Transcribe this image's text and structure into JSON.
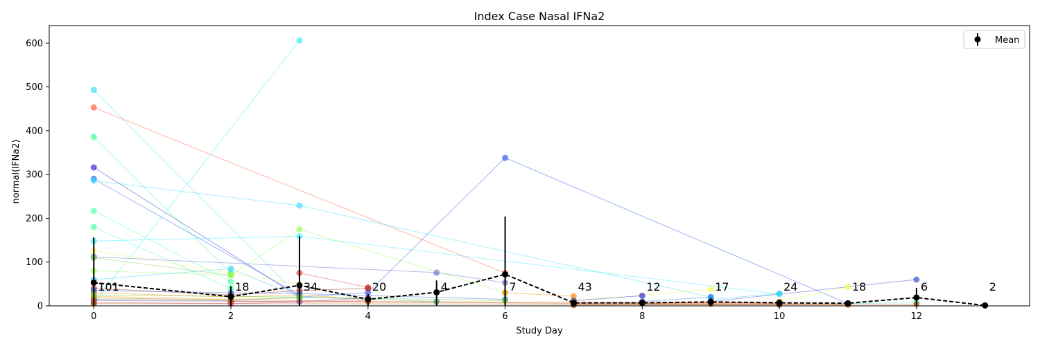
{
  "chart_data": {
    "type": "line",
    "title": "Index Case Nasal IFNa2",
    "xlabel": "Study Day",
    "ylabel": "normal(IFNa2)",
    "xlim": [
      -0.65,
      13.65
    ],
    "ylim": [
      0,
      640
    ],
    "xticks": [
      0,
      2,
      4,
      6,
      8,
      10,
      12
    ],
    "yticks": [
      0,
      100,
      200,
      300,
      400,
      500,
      600
    ],
    "grid": false,
    "legend": {
      "position": "top-right",
      "entries": [
        "Mean"
      ]
    },
    "mean_series": {
      "name": "Mean",
      "color": "#000000",
      "x": [
        0,
        2,
        3,
        4,
        5,
        6,
        7,
        8,
        9,
        10,
        11,
        12,
        13
      ],
      "y": [
        53,
        21,
        47,
        15,
        31,
        72,
        7,
        7,
        9,
        7,
        6,
        19,
        1
      ],
      "err_low": [
        53,
        21,
        47,
        15,
        31,
        72,
        7,
        7,
        9,
        7,
        6,
        19,
        1
      ],
      "err_high": [
        103,
        24,
        112,
        12,
        27,
        132,
        7,
        7,
        9,
        7,
        6,
        22,
        1
      ]
    },
    "counts": {
      "x": [
        0,
        2,
        3,
        4,
        5,
        6,
        7,
        8,
        9,
        10,
        11,
        12,
        13
      ],
      "labels": [
        "101",
        "18",
        "34",
        "20",
        "4",
        "7",
        "43",
        "12",
        "17",
        "24",
        "18",
        "6",
        "2"
      ]
    },
    "subject_series": [
      {
        "color": "#33ddff",
        "x": [
          0,
          3
        ],
        "y": [
          493,
          20
        ]
      },
      {
        "color": "#ff5533",
        "x": [
          0,
          6
        ],
        "y": [
          453,
          75
        ]
      },
      {
        "color": "#33ff99",
        "x": [
          0,
          2
        ],
        "y": [
          386,
          75
        ]
      },
      {
        "color": "#2222cc",
        "x": [
          0,
          3
        ],
        "y": [
          316,
          20
        ]
      },
      {
        "color": "#2255ee",
        "x": [
          0,
          3
        ],
        "y": [
          290,
          25
        ]
      },
      {
        "color": "#33ddff",
        "x": [
          0,
          3,
          9
        ],
        "y": [
          286,
          229,
          20
        ]
      },
      {
        "color": "#44ffaa",
        "x": [
          0,
          2
        ],
        "y": [
          217,
          55
        ]
      },
      {
        "color": "#44ffaa",
        "x": [
          0,
          2
        ],
        "y": [
          180,
          40
        ]
      },
      {
        "color": "#33eeff",
        "x": [
          0,
          3,
          10
        ],
        "y": [
          148,
          159,
          27
        ]
      },
      {
        "color": "#ffee66",
        "x": [
          0,
          3
        ],
        "y": [
          126,
          50
        ]
      },
      {
        "color": "#6666cc",
        "x": [
          0,
          5,
          6
        ],
        "y": [
          112,
          76,
          53
        ]
      },
      {
        "color": "#88cc55",
        "x": [
          0,
          2
        ],
        "y": [
          110,
          70
        ]
      },
      {
        "color": "#99ff55",
        "x": [
          0,
          2,
          3,
          6
        ],
        "y": [
          80,
          70,
          175,
          30
        ]
      },
      {
        "color": "#33eeff",
        "x": [
          0,
          3
        ],
        "y": [
          5,
          606
        ]
      },
      {
        "color": "#33ccee",
        "x": [
          0,
          2,
          3
        ],
        "y": [
          60,
          85,
          20
        ]
      },
      {
        "color": "#2255ee",
        "x": [
          3,
          4,
          6,
          11
        ],
        "y": [
          20,
          30,
          338,
          5
        ]
      },
      {
        "color": "#3344cc",
        "x": [
          9,
          12
        ],
        "y": [
          10,
          60
        ]
      },
      {
        "color": "#ee3333",
        "x": [
          3,
          4
        ],
        "y": [
          75,
          42
        ]
      },
      {
        "color": "#ff8800",
        "x": [
          6,
          7
        ],
        "y": [
          30,
          22
        ]
      },
      {
        "color": "#eeff44",
        "x": [
          7,
          9
        ],
        "y": [
          12,
          38
        ]
      },
      {
        "color": "#eeff44",
        "x": [
          10,
          11
        ],
        "y": [
          10,
          43
        ]
      },
      {
        "color": "#33ccee",
        "x": [
          9,
          10
        ],
        "y": [
          15,
          28
        ]
      },
      {
        "color": "#2222cc",
        "x": [
          7,
          8
        ],
        "y": [
          12,
          23
        ]
      },
      {
        "color": "#2277ee",
        "x": [
          8,
          9
        ],
        "y": [
          10,
          20
        ]
      },
      {
        "color": "#33ffcc",
        "x": [
          11,
          12
        ],
        "y": [
          5,
          8
        ]
      },
      {
        "color": "#ff8800",
        "x": [
          0,
          2,
          3,
          4
        ],
        "y": [
          30,
          20,
          25,
          15
        ]
      },
      {
        "color": "#aa2222",
        "x": [
          0,
          2,
          3,
          4
        ],
        "y": [
          40,
          25,
          35,
          40
        ]
      },
      {
        "color": "#ffaa00",
        "x": [
          0,
          2,
          3
        ],
        "y": [
          22,
          15,
          18
        ]
      },
      {
        "color": "#22aa88",
        "x": [
          0,
          2,
          3,
          5
        ],
        "y": [
          15,
          12,
          20,
          10
        ]
      },
      {
        "color": "#8833aa",
        "x": [
          0,
          3,
          4
        ],
        "y": [
          12,
          10,
          18
        ]
      },
      {
        "color": "#dd3366",
        "x": [
          0,
          2,
          4
        ],
        "y": [
          8,
          5,
          12
        ]
      },
      {
        "color": "#3366cc",
        "x": [
          0,
          2,
          3,
          6
        ],
        "y": [
          35,
          30,
          28,
          15
        ]
      },
      {
        "color": "#cc6600",
        "x": [
          0,
          4,
          7
        ],
        "y": [
          18,
          10,
          8
        ]
      },
      {
        "color": "#66cc33",
        "x": [
          0,
          3,
          6
        ],
        "y": [
          25,
          20,
          12
        ]
      },
      {
        "color": "#ff4444",
        "x": [
          7,
          8,
          10
        ],
        "y": [
          5,
          8,
          6
        ]
      },
      {
        "color": "#ff7700",
        "x": [
          7,
          9,
          11
        ],
        "y": [
          3,
          4,
          2
        ]
      },
      {
        "color": "#dd6600",
        "x": [
          7,
          8,
          9,
          10
        ],
        "y": [
          8,
          6,
          7,
          9
        ]
      },
      {
        "color": "#aa5500",
        "x": [
          0,
          7,
          10
        ],
        "y": [
          5,
          4,
          3
        ]
      },
      {
        "color": "#cc4400",
        "x": [
          2,
          7,
          12
        ],
        "y": [
          10,
          6,
          4
        ]
      },
      {
        "color": "#883300",
        "x": [
          7,
          10,
          11
        ],
        "y": [
          2,
          3,
          4
        ]
      }
    ]
  }
}
